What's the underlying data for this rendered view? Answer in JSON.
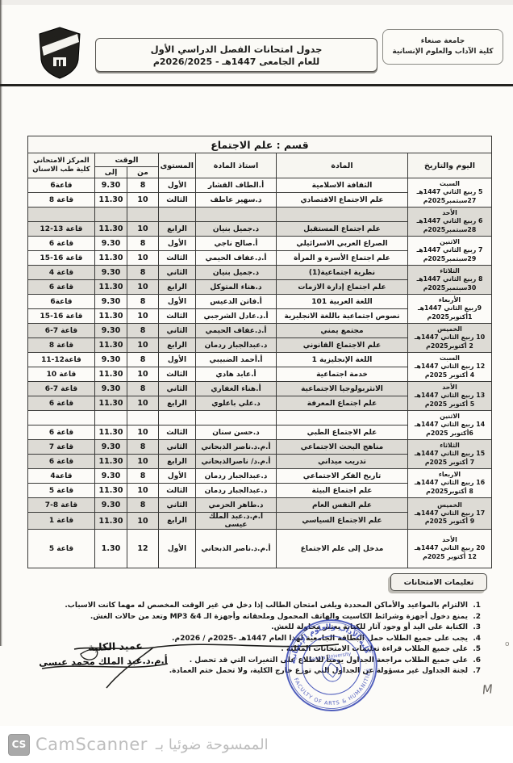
{
  "header": {
    "university_box": {
      "line1": "جامعة صنعاء",
      "line2": "كلية الآداب والعلوم الإنسانية"
    },
    "title_box": {
      "line1": "جدول امتحانات الفصل الدراسي الأول",
      "line2": "للعام الجامعى 1447هـ - 2026/2025م"
    }
  },
  "table": {
    "section_title": "قسم : علم الاجتماع",
    "headers": {
      "day": "اليوم والتاريخ",
      "subject": "المادة",
      "instructor": "استاذ المادة",
      "level": "المستوى",
      "time": "الوقت",
      "from": "من",
      "to": "إلى",
      "center_line1": "المركز الامتحاني",
      "center_line2": "كلية طب الاسنان"
    },
    "groups": [
      {
        "day": [
          "السبت",
          "5 ربيع الثاني 1447هـ",
          "27سبتمبر2025م"
        ],
        "shaded": false,
        "rows": [
          {
            "subject": "الثقافة الاسلامية",
            "instructor": "أ.الطاف القشار",
            "level": "الأول",
            "from": "8",
            "to": "9.30",
            "room": "قاعة6"
          },
          {
            "subject": "علم الاجتماع الاقتصادي",
            "instructor": "د.سهير عاطف",
            "level": "الثالث",
            "from": "10",
            "to": "11.30",
            "room": "قاعة 8"
          }
        ]
      },
      {
        "day": [
          "الأحد",
          "6 ربيع الثاني 1447هـ",
          "28سبتمبر2025م"
        ],
        "shaded": true,
        "rows": [
          {
            "subject": "",
            "instructor": "",
            "level": "",
            "from": "",
            "to": "",
            "room": ""
          },
          {
            "subject": "علم اجتماع المستقبل",
            "instructor": "د.جميل بنيان",
            "level": "الرابع",
            "from": "10",
            "to": "11.30",
            "room": "قاعة 13-12"
          }
        ]
      },
      {
        "day": [
          "الاثنين",
          "7 ربيع الثاني 1447هـ",
          "29سبتمبر2025م"
        ],
        "shaded": false,
        "rows": [
          {
            "subject": "الصراع العربي الاسرائيلي",
            "instructor": "أ.صالح ناجي",
            "level": "الأول",
            "from": "8",
            "to": "9.30",
            "room": "قاعة 6"
          },
          {
            "subject": "علم اجتماع الأسرة و المرأة",
            "instructor": "أ.د.عفاف الحيمي",
            "level": "الثالث",
            "from": "10",
            "to": "11.30",
            "room": "قاعة 16-15"
          }
        ]
      },
      {
        "day": [
          "الثلاثاء",
          "8 ربيع الثاني 1447هـ",
          "30سبتمبر2025م"
        ],
        "shaded": true,
        "rows": [
          {
            "subject": "نظرية اجتماعية(1)",
            "instructor": "د.جميل بنيان",
            "level": "الثاني",
            "from": "8",
            "to": "9.30",
            "room": "قاعة 4"
          },
          {
            "subject": "علم اجتماع إدارة الازمات",
            "instructor": "د.هناء المتوكل",
            "level": "الرابع",
            "from": "10",
            "to": "11.30",
            "room": "قاعة 6"
          }
        ]
      },
      {
        "day": [
          "الأربعاء",
          "9ربيع الثاني 1447هـ",
          "1أكتوبر2025م"
        ],
        "shaded": false,
        "rows": [
          {
            "subject": "اللغة العربية 101",
            "instructor": "أ.فاتن الدعيس",
            "level": "الأول",
            "from": "8",
            "to": "9.30",
            "room": "قاعة6"
          },
          {
            "subject": "نصوص اجتماعية باللغة الانجليزية",
            "instructor": "أ.د.عادل الشرجبي",
            "level": "الثالث",
            "from": "10",
            "to": "11.30",
            "room": "قاعة 16-15"
          }
        ]
      },
      {
        "day": [
          "الخميس",
          "10 ربيع الثاني 1447هـ",
          "2 أكتوبر2025م"
        ],
        "shaded": true,
        "rows": [
          {
            "subject": "مجتمع يمني",
            "instructor": "أ.د.عفاف الحيمي",
            "level": "الثاني",
            "from": "8",
            "to": "9.30",
            "room": "قاعة 7-6"
          },
          {
            "subject": "علم الاجتماع القانوني",
            "instructor": "د.عبدالجبار ردمان",
            "level": "الرابع",
            "from": "10",
            "to": "11.30",
            "room": "قاعة 8"
          }
        ]
      },
      {
        "day": [
          "السبت",
          "12 ربيع الثاني 1447هـ",
          "4 أكتوبر 2025م"
        ],
        "shaded": false,
        "rows": [
          {
            "subject": "اللغة الإنجليزية 1",
            "instructor": "أ.أحمد الضبيبي",
            "level": "الأول",
            "from": "8",
            "to": "9.30",
            "room": "قاعة12-11"
          },
          {
            "subject": "خدمة اجتماعية",
            "instructor": "أ.عابد هادي",
            "level": "الثالث",
            "from": "10",
            "to": "11.30",
            "room": "قاعة 10"
          }
        ]
      },
      {
        "day": [
          "الأحد",
          "13 ربيع الثاني 1447هـ",
          "5 أكتوبر 2025م"
        ],
        "shaded": true,
        "rows": [
          {
            "subject": "الانثربولوجيا الاجتماعية",
            "instructor": "أ.هناء الغفاري",
            "level": "الثاني",
            "from": "8",
            "to": "9.30",
            "room": "قاعة 7-6"
          },
          {
            "subject": "علم اجتماع المعرفة",
            "instructor": "د.علي باعلوي",
            "level": "الرابع",
            "from": "10",
            "to": "11.30",
            "room": "قاعة 6"
          }
        ]
      },
      {
        "day": [
          "الاثنين",
          "14 ربيع الثاني 1447هـ",
          "6أكتوبر 2025م"
        ],
        "shaded": false,
        "rows": [
          {
            "subject": "",
            "instructor": "",
            "level": "",
            "from": "",
            "to": "",
            "room": ""
          },
          {
            "subject": "علم الاجتماع الطبي",
            "instructor": "د.حسن سنان",
            "level": "الثالث",
            "from": "10",
            "to": "11.30",
            "room": "قاعة 6"
          }
        ]
      },
      {
        "day": [
          "الثلاثاء",
          "15 ربيع الثاني 1447هـ",
          "7 أكتوبر 2025م"
        ],
        "shaded": true,
        "rows": [
          {
            "subject": "مناهج البحث الاجتماعي",
            "instructor": "أ.م.د.ناصر الذبحاني",
            "level": "الثاني",
            "from": "8",
            "to": "9.30",
            "room": "قاعة 7"
          },
          {
            "subject": "تدريب ميداني",
            "instructor": "أ.م.د/ ناصرالذبحاني",
            "level": "الرابع",
            "from": "10",
            "to": "11.30",
            "room": "قاعة 6"
          }
        ]
      },
      {
        "day": [
          "الاربعاء",
          "16 ربيع الثاني 1447هـ",
          "8 أكتوبر2025م"
        ],
        "shaded": false,
        "rows": [
          {
            "subject": "تاريخ الفكر الاجتماعي",
            "instructor": "د.عبدالجبار ردمان",
            "level": "الأول",
            "from": "8",
            "to": "9.30",
            "room": "قاعة4"
          },
          {
            "subject": "علم اجتماع البيئة",
            "instructor": "د.عبدالجبار ردمان",
            "level": "الثالث",
            "from": "10",
            "to": "11.30",
            "room": "قاعة 5"
          }
        ]
      },
      {
        "day": [
          "الخميس",
          "17 ربيع الثاني 1447هـ",
          "9 أكتوبر 2025م"
        ],
        "shaded": true,
        "rows": [
          {
            "subject": "علم النفس العام",
            "instructor": "د.طاهر الحزمي",
            "level": "الثاني",
            "from": "8",
            "to": "9.30",
            "room": "قاعة 8-7"
          },
          {
            "subject": "علم الاجتماع السياسي",
            "instructor": "أ.م.د.عبد الملك عيسى",
            "level": "الرابع",
            "from": "10",
            "to": "11.30",
            "room": "قاعة 1"
          }
        ]
      },
      {
        "day": [
          "الأحد",
          "20 ربيع الثاني 1447هـ",
          "12 أكتوبر 2025م"
        ],
        "shaded": false,
        "tall": true,
        "rows": [
          {
            "subject": "مدخل إلى علم الاجتماع",
            "instructor": "أ.م.د.ناصر الذبحاني",
            "level": "الأول",
            "from": "12",
            "to": "1.30",
            "room": "قاعة 5"
          }
        ]
      }
    ]
  },
  "instructions": {
    "title": "تعليمات الامتحانات",
    "items": [
      "الالتزام بالمواعيد والأماكن المحددة ويلغى امتحان الطالب إذا دخل في غير الوقت المخصص له مهما كانت الاسباب.",
      "يمنع دخول أجهزة وشرائط الكاسيت والهاتف المحمول وملحقاته وأجهزة الـ MP3 &4 وتعد من حالات الغش.",
      "الكتابة على اليد أو وجود آثار للكتابة يعتبر محاولة للغش.",
      "يجب على جميع الطلاب حمل البطاقة الجامعية لهذا العام 1447هـ -2025م / 2026م.",
      "على جميع الطلاب قراءة تعليمات الامتحانات المعلنة .",
      "على جميع الطلاب مراجعة الجداول يومياً للاطلاع على التغيرات التي قد تحصل .",
      "لجنة الجداول غير مسؤولة عن الجداول التي توزع خارج الكلية، ولا تحمل ختم العمادة."
    ]
  },
  "signature": {
    "role": "عميد الكلية",
    "name": "أ.م.د.عبد الملك محمد عيسى"
  },
  "stamp": {
    "arabic": "كلية الآداب والعلوم الإنسانية",
    "english": "FACULTY OF ARTS & HUMANITIES",
    "center": "Sana'a University",
    "color": "#2b3cb0"
  },
  "footer": {
    "logo": "CS",
    "brand": "CamScanner",
    "scanned_with": "الممسوحة ضوئيا بـ"
  },
  "artifacts": {
    "mark": "M",
    "dot": "o"
  }
}
